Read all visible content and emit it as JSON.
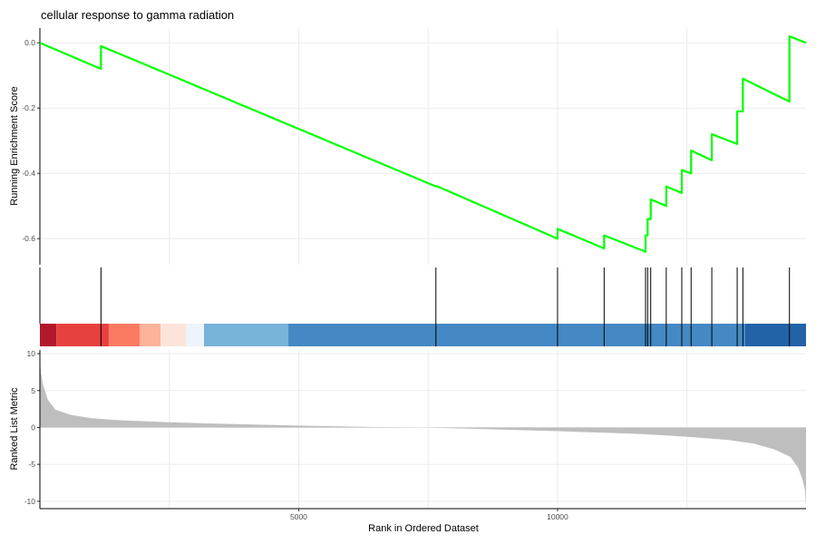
{
  "chart_data": {
    "type": "line",
    "title": "cellular response to gamma radiation",
    "xlabel": "Rank in Ordered Dataset",
    "xlim": [
      0,
      14800
    ],
    "x_ticks": [
      5000,
      10000
    ],
    "x_tick_labels": [
      "5000",
      "10000"
    ],
    "panels": [
      {
        "name": "running-es",
        "ylabel": "Running Enrichment Score",
        "ylim": [
          -0.68,
          0.045
        ],
        "y_ticks": [
          0.0,
          -0.2,
          -0.4,
          -0.6
        ],
        "y_tick_labels": [
          "0.0",
          "-0.2",
          "-0.4",
          "-0.6"
        ],
        "line_color": "#00ff00",
        "x": [
          0,
          1180,
          1180,
          7650,
          7680,
          10000,
          10000,
          10900,
          10900,
          11700,
          11700,
          11740,
          11740,
          11800,
          11800,
          12100,
          12100,
          12400,
          12400,
          12580,
          12580,
          12980,
          12980,
          13470,
          13470,
          13580,
          13580,
          14480,
          14480,
          14800
        ],
        "y": [
          0.0,
          -0.08,
          -0.01,
          -0.44,
          -0.44,
          -0.6,
          -0.57,
          -0.63,
          -0.59,
          -0.64,
          -0.59,
          -0.59,
          -0.54,
          -0.54,
          -0.48,
          -0.5,
          -0.44,
          -0.46,
          -0.39,
          -0.4,
          -0.33,
          -0.36,
          -0.28,
          -0.31,
          -0.21,
          -0.21,
          -0.11,
          -0.18,
          0.02,
          0.0
        ]
      },
      {
        "name": "gene-hits",
        "hit_positions": [
          1180,
          7650,
          10000,
          10900,
          11700,
          11740,
          11800,
          12100,
          12400,
          12580,
          12980,
          13470,
          13580,
          14480
        ],
        "color_bands": [
          {
            "from": 0,
            "to": 320,
            "color": "#b2182b"
          },
          {
            "from": 320,
            "to": 1330,
            "color": "#e7413f"
          },
          {
            "from": 1330,
            "to": 1930,
            "color": "#fb7a62"
          },
          {
            "from": 1930,
            "to": 2330,
            "color": "#fdb39a"
          },
          {
            "from": 2330,
            "to": 2820,
            "color": "#fde4d8"
          },
          {
            "from": 2820,
            "to": 3170,
            "color": "#eef4fb"
          },
          {
            "from": 3170,
            "to": 4800,
            "color": "#78b3d9"
          },
          {
            "from": 4800,
            "to": 13620,
            "color": "#4489c3"
          },
          {
            "from": 13620,
            "to": 14800,
            "color": "#2263a8"
          }
        ]
      },
      {
        "name": "ranked-metric",
        "ylabel": "Ranked List Metric",
        "ylim": [
          -11,
          10.5
        ],
        "y_ticks": [
          10,
          5,
          0,
          -5,
          -10
        ],
        "y_tick_labels": [
          "10",
          "5",
          "0",
          "-5",
          "-10"
        ],
        "fill_color": "#bebebe",
        "x": [
          0,
          20,
          60,
          150,
          300,
          600,
          1000,
          1500,
          2500,
          3500,
          5000,
          6500,
          7400,
          8500,
          10000,
          11500,
          12500,
          13300,
          13800,
          14200,
          14500,
          14650,
          14730,
          14780,
          14800
        ],
        "y": [
          9.2,
          7.4,
          5.8,
          3.8,
          2.4,
          1.7,
          1.25,
          1.0,
          0.7,
          0.5,
          0.25,
          0.05,
          0.0,
          -0.2,
          -0.5,
          -0.85,
          -1.25,
          -1.7,
          -2.2,
          -3.0,
          -4.0,
          -5.5,
          -7.0,
          -8.5,
          -10.8
        ]
      }
    ]
  }
}
